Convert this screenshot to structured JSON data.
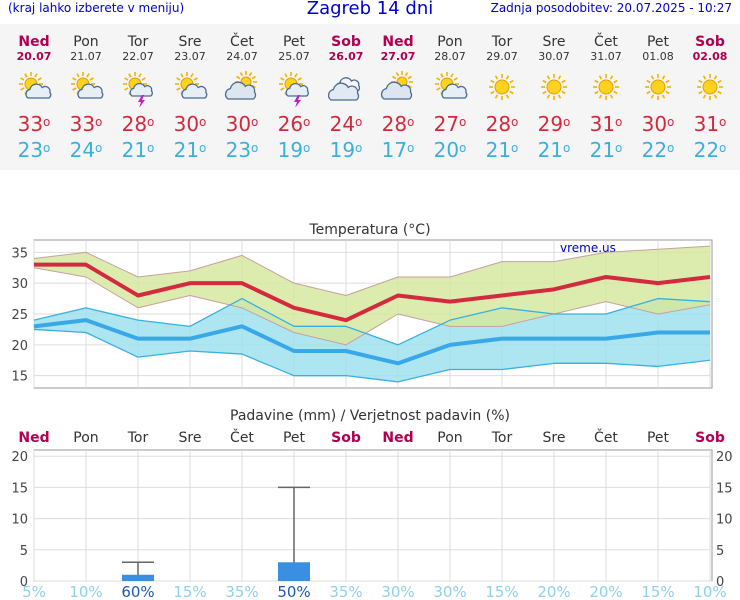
{
  "header": {
    "left_note": "(kraj lahko izberete v meniju)",
    "title": "Zagreb 14 dni",
    "updated": "Zadnja posodobitev: 20.07.2025 - 10:27"
  },
  "colors": {
    "max": "#d4283e",
    "min": "#38b0e0",
    "weekend": "#b00050",
    "band_max": "#d6e8a0",
    "band_min": "#9fe0ef",
    "bar": "#3a8fe0"
  },
  "days": [
    {
      "name": "Ned",
      "date": "20.07",
      "icon": "sun-cloud-icon",
      "max": "33",
      "min": "23",
      "weekend": true
    },
    {
      "name": "Pon",
      "date": "21.07",
      "icon": "sun-cloud-icon",
      "max": "33",
      "min": "24",
      "weekend": false
    },
    {
      "name": "Tor",
      "date": "22.07",
      "icon": "sun-cloud-storm-icon",
      "max": "28",
      "min": "21",
      "weekend": false
    },
    {
      "name": "Sre",
      "date": "23.07",
      "icon": "sun-cloud-icon",
      "max": "30",
      "min": "21",
      "weekend": false
    },
    {
      "name": "Čet",
      "date": "24.07",
      "icon": "cloud-sun-icon",
      "max": "30",
      "min": "23",
      "weekend": false
    },
    {
      "name": "Pet",
      "date": "25.07",
      "icon": "sun-cloud-storm-icon",
      "max": "26",
      "min": "19",
      "weekend": false
    },
    {
      "name": "Sob",
      "date": "26.07",
      "icon": "cloudy-icon",
      "max": "24",
      "min": "19",
      "weekend": true
    },
    {
      "name": "Ned",
      "date": "27.07",
      "icon": "cloud-sun-icon",
      "max": "28",
      "min": "17",
      "weekend": true
    },
    {
      "name": "Pon",
      "date": "28.07",
      "icon": "sun-cloud-icon",
      "max": "27",
      "min": "20",
      "weekend": false
    },
    {
      "name": "Tor",
      "date": "29.07",
      "icon": "sun-icon",
      "max": "28",
      "min": "21",
      "weekend": false
    },
    {
      "name": "Sre",
      "date": "30.07",
      "icon": "sun-icon",
      "max": "29",
      "min": "21",
      "weekend": false
    },
    {
      "name": "Čet",
      "date": "31.07",
      "icon": "sun-icon",
      "max": "31",
      "min": "21",
      "weekend": false
    },
    {
      "name": "Pet",
      "date": "01.08",
      "icon": "sun-icon",
      "max": "30",
      "min": "22",
      "weekend": false
    },
    {
      "name": "Sob",
      "date": "02.08",
      "icon": "sun-icon",
      "max": "31",
      "min": "22",
      "weekend": true
    }
  ],
  "chart_data": [
    {
      "type": "line",
      "title": "Temperatura (°C)",
      "watermark": "vreme.us",
      "x": [
        "20.07",
        "21.07",
        "22.07",
        "23.07",
        "24.07",
        "25.07",
        "26.07",
        "27.07",
        "28.07",
        "29.07",
        "30.07",
        "31.07",
        "01.08",
        "02.08"
      ],
      "ylim": [
        13,
        37
      ],
      "yticks": [
        15,
        20,
        25,
        30,
        35
      ],
      "grid": true,
      "series": [
        {
          "values": [
            33,
            33,
            28,
            30,
            30,
            26,
            24,
            28,
            27,
            28,
            29,
            31,
            30,
            31
          ]
        },
        {
          "values": [
            32.5,
            31,
            26,
            28,
            26,
            22,
            20,
            25,
            23,
            23,
            25,
            27,
            25,
            26.5
          ]
        },
        {
          "values": [
            34,
            35,
            31,
            32,
            34.5,
            30,
            28,
            31,
            31,
            33.5,
            33.5,
            35,
            35.5,
            36
          ]
        },
        {
          "values": [
            23,
            24,
            21,
            21,
            23,
            19,
            19,
            17,
            20,
            21,
            21,
            21,
            22,
            22
          ]
        },
        {
          "values": [
            22.5,
            22,
            18,
            19,
            18.5,
            15,
            15,
            14,
            16,
            16,
            17,
            17,
            16.5,
            17.5
          ]
        },
        {
          "values": [
            24,
            26,
            24,
            23,
            27.5,
            23,
            23,
            20,
            24,
            26,
            25,
            25,
            27.5,
            27
          ]
        }
      ]
    },
    {
      "type": "bar",
      "title": "Padavine (mm) / Verjetnost padavin (%)",
      "categories": [
        "Ned",
        "Pon",
        "Tor",
        "Sre",
        "Čet",
        "Pet",
        "Sob",
        "Ned",
        "Pon",
        "Tor",
        "Sre",
        "Čet",
        "Pet",
        "Sob"
      ],
      "ylim": [
        0,
        21
      ],
      "yticks": [
        0,
        5,
        10,
        15,
        20
      ],
      "grid": true,
      "series": [
        {
          "values": [
            0,
            0,
            1,
            0,
            0,
            3,
            0,
            0,
            0,
            0,
            0,
            0,
            0,
            0
          ]
        },
        {
          "values": [
            0,
            0,
            3,
            0,
            0,
            15,
            0,
            0,
            0,
            0,
            0,
            0,
            0,
            0
          ]
        }
      ],
      "probability": [
        "5%",
        "10%",
        "60%",
        "15%",
        "35%",
        "50%",
        "35%",
        "30%",
        "30%",
        "15%",
        "20%",
        "20%",
        "15%",
        "10%"
      ]
    }
  ]
}
